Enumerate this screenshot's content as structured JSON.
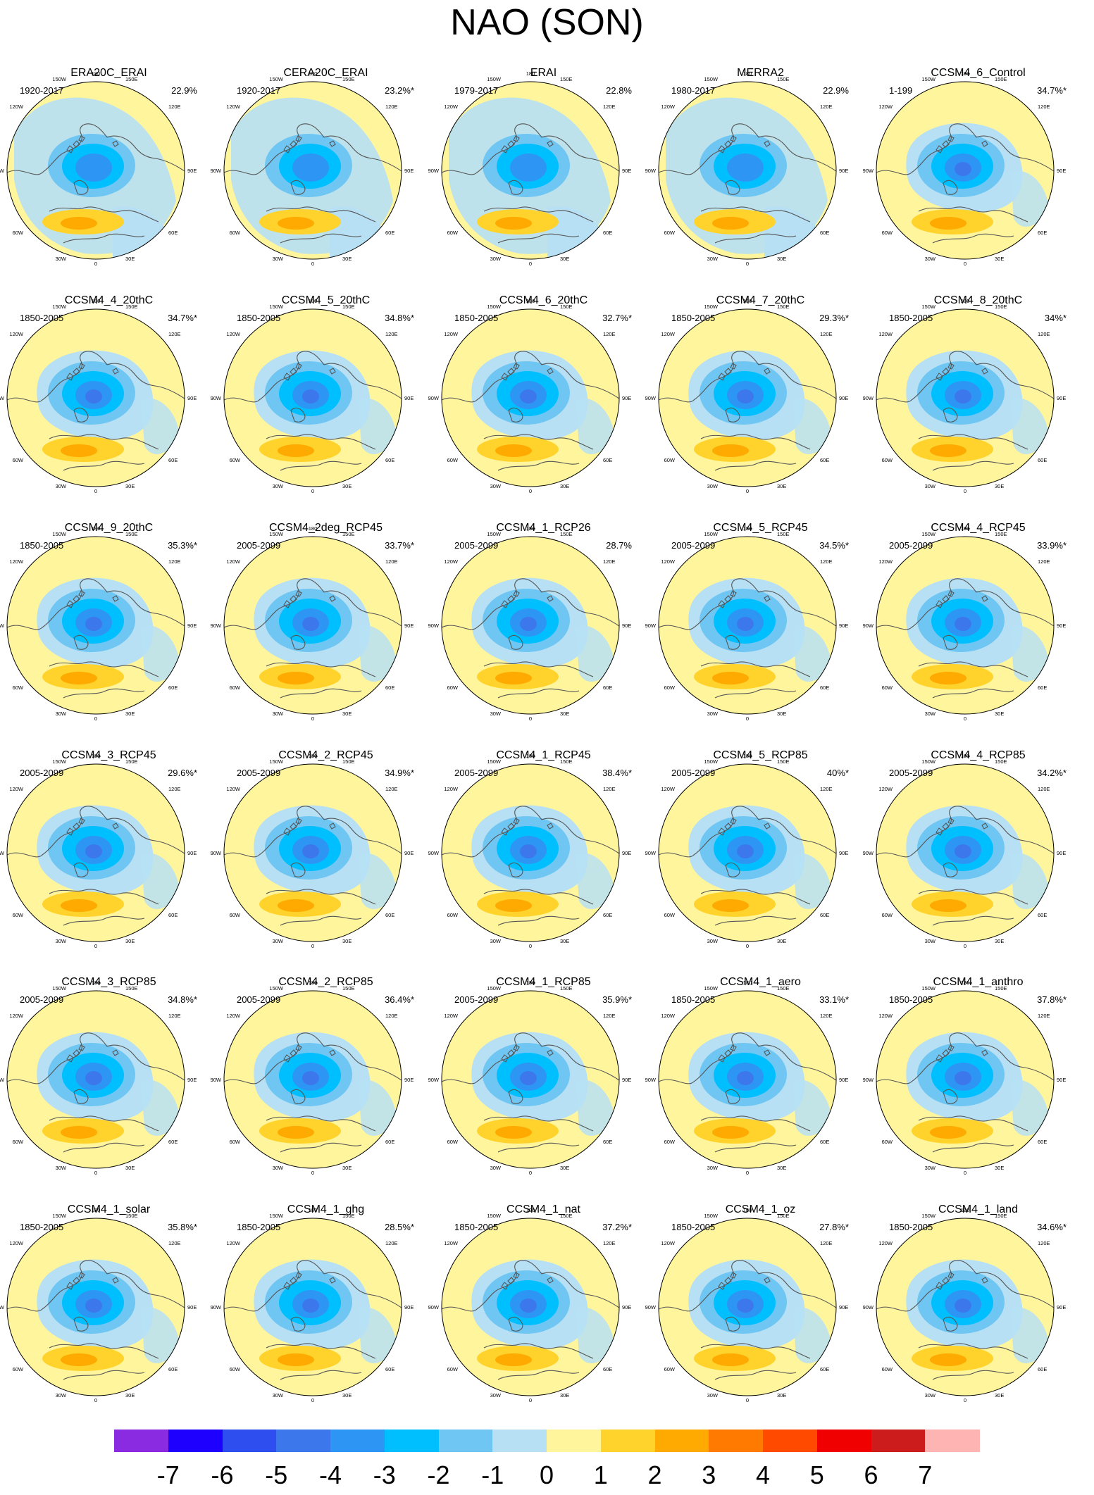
{
  "title": "NAO (SON)",
  "panels": [
    {
      "name": "ERA20C_ERAI",
      "period": "1920-2017",
      "pct": "22.9%",
      "pattern": "reanalysis"
    },
    {
      "name": "CERA20C_ERAI",
      "period": "1920-2017",
      "pct": "23.2%*",
      "pattern": "reanalysis"
    },
    {
      "name": "ERAI",
      "period": "1979-2017",
      "pct": "22.8%",
      "pattern": "reanalysis"
    },
    {
      "name": "MERRA2",
      "period": "1980-2017",
      "pct": "22.9%",
      "pattern": "reanalysis"
    },
    {
      "name": "CCSM4_6_Control",
      "period": "1-199",
      "pct": "34.7%*",
      "pattern": "model"
    },
    {
      "name": "CCSM4_4_20thC",
      "period": "1850-2005",
      "pct": "34.7%*",
      "pattern": "model"
    },
    {
      "name": "CCSM4_5_20thC",
      "period": "1850-2005",
      "pct": "34.8%*",
      "pattern": "model"
    },
    {
      "name": "CCSM4_6_20thC",
      "period": "1850-2005",
      "pct": "32.7%*",
      "pattern": "model"
    },
    {
      "name": "CCSM4_7_20thC",
      "period": "1850-2005",
      "pct": "29.3%*",
      "pattern": "model"
    },
    {
      "name": "CCSM4_8_20thC",
      "period": "1850-2005",
      "pct": "34%*",
      "pattern": "model"
    },
    {
      "name": "CCSM4_9_20thC",
      "period": "1850-2005",
      "pct": "35.3%*",
      "pattern": "model"
    },
    {
      "name": "CCSM4_2deg_RCP45",
      "period": "2005-2099",
      "pct": "33.7%*",
      "pattern": "model"
    },
    {
      "name": "CCSM4_1_RCP26",
      "period": "2005-2099",
      "pct": "28.7%",
      "pattern": "model"
    },
    {
      "name": "CCSM4_5_RCP45",
      "period": "2005-2099",
      "pct": "34.5%*",
      "pattern": "model"
    },
    {
      "name": "CCSM4_4_RCP45",
      "period": "2005-2099",
      "pct": "33.9%*",
      "pattern": "model"
    },
    {
      "name": "CCSM4_3_RCP45",
      "period": "2005-2099",
      "pct": "29.6%*",
      "pattern": "model"
    },
    {
      "name": "CCSM4_2_RCP45",
      "period": "2005-2099",
      "pct": "34.9%*",
      "pattern": "model"
    },
    {
      "name": "CCSM4_1_RCP45",
      "period": "2005-2099",
      "pct": "38.4%*",
      "pattern": "model"
    },
    {
      "name": "CCSM4_5_RCP85",
      "period": "2005-2099",
      "pct": "40%*",
      "pattern": "model"
    },
    {
      "name": "CCSM4_4_RCP85",
      "period": "2005-2099",
      "pct": "34.2%*",
      "pattern": "model"
    },
    {
      "name": "CCSM4_3_RCP85",
      "period": "2005-2099",
      "pct": "34.8%*",
      "pattern": "model"
    },
    {
      "name": "CCSM4_2_RCP85",
      "period": "2005-2099",
      "pct": "36.4%*",
      "pattern": "model"
    },
    {
      "name": "CCSM4_1_RCP85",
      "period": "2005-2099",
      "pct": "35.9%*",
      "pattern": "model"
    },
    {
      "name": "CCSM4_1_aero",
      "period": "1850-2005",
      "pct": "33.1%*",
      "pattern": "model"
    },
    {
      "name": "CCSM4_1_anthro",
      "period": "1850-2005",
      "pct": "37.8%*",
      "pattern": "model"
    },
    {
      "name": "CCSM4_1_solar",
      "period": "1850-2005",
      "pct": "35.8%*",
      "pattern": "model"
    },
    {
      "name": "CCSM4_1_ghg",
      "period": "1850-2005",
      "pct": "28.5%*",
      "pattern": "model"
    },
    {
      "name": "CCSM4_1_nat",
      "period": "1850-2005",
      "pct": "37.2%*",
      "pattern": "model"
    },
    {
      "name": "CCSM4_1_oz",
      "period": "1850-2005",
      "pct": "27.8%*",
      "pattern": "model"
    },
    {
      "name": "CCSM4_1_land",
      "period": "1850-2005",
      "pct": "34.6%*",
      "pattern": "model"
    }
  ],
  "longitude_labels": [
    "180",
    "150W",
    "150E",
    "120W",
    "120E",
    "90W",
    "90E",
    "60W",
    "60E",
    "30W",
    "30E",
    "0"
  ],
  "colorbar": {
    "colors": [
      "#8a2be2",
      "#1e00ff",
      "#2e4ef0",
      "#3c78ec",
      "#2d96f5",
      "#00bfff",
      "#6fc6f3",
      "#b7e0f4",
      "#fff59d",
      "#ffd32c",
      "#ffaa00",
      "#ff7a00",
      "#ff4a00",
      "#f00000",
      "#cc1c1c",
      "#ffb4b4"
    ],
    "labels": [
      "-7",
      "-6",
      "-5",
      "-4",
      "-3",
      "-2",
      "-1",
      "0",
      "1",
      "2",
      "3",
      "4",
      "5",
      "6",
      "7"
    ]
  }
}
